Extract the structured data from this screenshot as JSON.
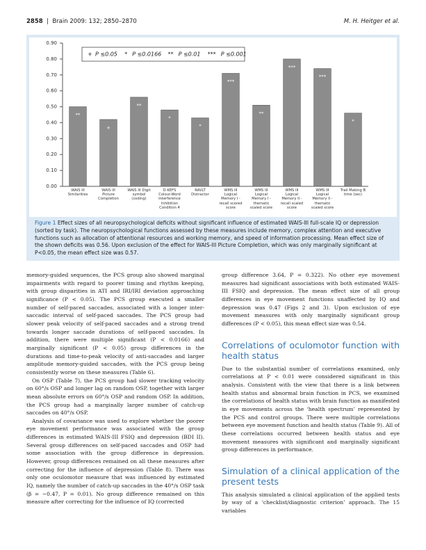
{
  "header": {
    "page": "2858",
    "journal": "Brain 2009: 132; 2850–2870",
    "authors": "M. H. Heitger et al."
  },
  "chart_data": {
    "type": "bar",
    "categories": [
      "WAIS III\nSimilarities",
      "WAIS III\nPicture\nCompletion",
      "WAIS III Digit\nsymbol\n(coding)",
      "D-KEFS\nColour-Word\nInterference\nInhibition\nCondition 4",
      "RAVLT\nDistractor",
      "WMS III\nLogical\nMemory I -\nrecall scored\nscore",
      "WMS III\nLogical\nMemory I -\nthematic\nscaled score",
      "WMS III\nLogical\nMemory II -\nrecall scaled\nscore",
      "WMS III\nLogical\nMemory II -\nthematic\nscaled score",
      "Trail Making B\ntime (sec)"
    ],
    "values": [
      0.5,
      0.42,
      0.56,
      0.48,
      0.43,
      0.71,
      0.51,
      0.8,
      0.74,
      0.46
    ],
    "annotations": [
      "**",
      "+",
      "**",
      "*",
      "*",
      "***",
      "**",
      "***",
      "***",
      "*"
    ],
    "color": "#8c8c8c",
    "ylim": [
      0,
      0.9
    ],
    "yticks": [
      {
        "value": 0,
        "label": "0.00"
      },
      {
        "value": 0.1,
        "label": "0.10"
      },
      {
        "value": 0.2,
        "label": "0.20"
      },
      {
        "value": 0.3,
        "label": "0.30"
      },
      {
        "value": 0.4,
        "label": "0.40"
      },
      {
        "value": 0.5,
        "label": "0.50"
      },
      {
        "value": 0.6,
        "label": "0.60"
      },
      {
        "value": 0.7,
        "label": "0.70"
      },
      {
        "value": 0.8,
        "label": "0.80"
      },
      {
        "value": 0.9,
        "label": "0.90"
      }
    ],
    "legend": [
      {
        "symbol": "+",
        "label": "P ≤0.05"
      },
      {
        "symbol": "*",
        "label": "P ≤0.0166"
      },
      {
        "symbol": "**",
        "label": "P ≤0.01"
      },
      {
        "symbol": "***",
        "label": "P ≤0.001"
      }
    ]
  },
  "caption": {
    "label": "Figure 1",
    "text": "Effect sizes of all neuropsychological deficits without significant influence of estimated WAIS-III full-scale IQ or depression (sorted by task). The neuropsychological functions assessed by these measures include memory, complex attention and executive functions such as allocation of attentional resources and working memory, and speed of information processing. Mean effect size of the shown deficits was 0.56. Upon exclusion of the effect for WAIS-III Picture Completion, which was only marginally significant at P<0.05, the mean effect size was 0.57."
  },
  "left_column": [
    "memory-guided sequences, the PCS group also showed marginal impairments with regard to poorer timing and rhythm keeping, with group disparities in ATI and IRI/IRI deviation approaching significance (P < 0.05). The PCS group executed a smaller number of self-paced saccades, associated with a longer inter-saccadic interval of self-paced saccades. The PCS group had slower peak velocity of self-paced saccades and a strong trend towards longer saccade durations of self-paced saccades. In addition, there were multiple significant (P < 0.0166) and marginally significant (P < 0.05) group differences in the durations and time-to-peak velocity of anti-saccades and larger amplitude memory-guided saccades, with the PCS group being consistently worse on these measures (Table 6).",
    "On OSP (Table 7), the PCS group had slower tracking velocity on 60°/s OSP and longer lag on random OSP, together with larger mean absolute errors on 60°/s OSP and random OSP. In addition, the PCS group had a marginally larger number of catch-up saccades on 40°/s OSP.",
    "Analysis of covariance was used to explore whether the poorer eye movement performance was associated with the group differences in estimated WAIS-III FSIQ and depression (BDI II). Several group differences on self-paced saccades and OSP had some association with the group difference in depression. However, group differences remained on all these measures after correcting for the influence of depression (Table 8). There was only one oculomotor measure that was influenced by estimated IQ, namely the number of catch-up saccades in the 40°/s OSP task (β = −0.47, P = 0.01). No group difference remained on this measure after correcting for the influence of IQ (corrected"
  ],
  "right_column": {
    "paragraph_1": "group difference 3.64, P = 0.322). No other eye movement measures had significant associations with both estimated WAIS-III FSIQ and depression. The mean effect size of all group differences in eye movement functions unaffected by IQ and depression was 0.47 (Figs 2 and 3). Upon exclusion of eye movement measures with only marginally significant group differences (P < 0.05), this mean effect size was 0.54.",
    "heading_1": "Correlations of oculomotor function with health status",
    "paragraph_2": "Due to the substantial number of correlations examined, only correlations at P < 0.01 were considered significant in this analysis. Consistent with the view that there is a link between health status and abnormal brain function in PCS, we examined the correlations of health status with brain function as manifested in eye movements across the ‘health spectrum’ represented by the PCS and control groups. There were multiple correlations between eye movement function and health status (Table 9). All of these correlations occurred between health status and eye movement measures with significant and marginally significant group differences in performance.",
    "heading_2": "Simulation of a clinical application of the present tests",
    "paragraph_3": "This analysis simulated a clinical application of the applied tests by way of a ‘checklist/diagnostic criterion’ approach. The 15 variables"
  }
}
